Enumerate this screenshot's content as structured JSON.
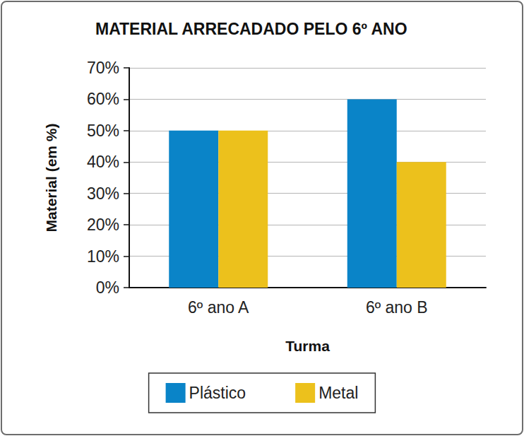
{
  "chart_data": {
    "type": "bar",
    "title": "MATERIAL ARRECADADO PELO 6º ANO",
    "x_label": "Turma",
    "y_label": "Material (em %)",
    "categories": [
      "6º ano A",
      "6º ano B"
    ],
    "series": [
      {
        "name": "Plástico",
        "color": "#0a84c8",
        "values": [
          50,
          60
        ]
      },
      {
        "name": "Metal",
        "color": "#ecc11c",
        "values": [
          50,
          40
        ]
      }
    ],
    "ylim": [
      0,
      70
    ],
    "yticks": [
      {
        "value": 0,
        "label": "0%"
      },
      {
        "value": 10,
        "label": "10%"
      },
      {
        "value": 20,
        "label": "20%"
      },
      {
        "value": 30,
        "label": "30%"
      },
      {
        "value": 40,
        "label": "40%"
      },
      {
        "value": 50,
        "label": "50%"
      },
      {
        "value": 60,
        "label": "60%"
      },
      {
        "value": 70,
        "label": "70%"
      }
    ],
    "grid": true,
    "legend": "bottom"
  }
}
